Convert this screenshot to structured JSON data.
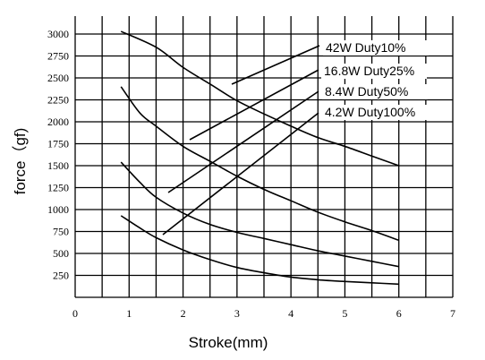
{
  "chart_data": {
    "type": "line",
    "xlabel": "Stroke(mm)",
    "ylabel": "force（gf)",
    "xlim": [
      0,
      7
    ],
    "ylim": [
      0,
      3250
    ],
    "x_ticks": [
      "0",
      "1",
      "2",
      "3",
      "4",
      "5",
      "6",
      "7"
    ],
    "y_ticks": [
      "250",
      "500",
      "750",
      "1000",
      "1250",
      "1500",
      "1750",
      "2000",
      "2250",
      "2500",
      "2750",
      "3000"
    ],
    "grid": true,
    "legend": [
      "42W Duty10%",
      "16.8W Duty25%",
      "8.4W Duty50%",
      "4.2W Duty100%"
    ],
    "series": [
      {
        "name": "42W Duty10%",
        "x": [
          0.85,
          1.5,
          2.0,
          2.5,
          3.0,
          3.5,
          4.0,
          4.5,
          5.0,
          5.5,
          6.0
        ],
        "y": [
          3030,
          2850,
          2620,
          2430,
          2240,
          2090,
          1950,
          1820,
          1720,
          1610,
          1500
        ]
      },
      {
        "name": "16.8W Duty25%",
        "x": [
          0.85,
          1.2,
          1.5,
          2.0,
          2.5,
          3.0,
          3.5,
          4.0,
          4.5,
          5.0,
          5.5,
          6.0
        ],
        "y": [
          2400,
          2100,
          1950,
          1720,
          1550,
          1380,
          1230,
          1100,
          970,
          860,
          760,
          650
        ]
      },
      {
        "name": "8.4W Duty50%",
        "x": [
          0.85,
          1.2,
          1.5,
          2.0,
          2.5,
          3.0,
          3.5,
          4.0,
          4.5,
          5.0,
          5.5,
          6.0
        ],
        "y": [
          1540,
          1310,
          1140,
          960,
          830,
          740,
          670,
          600,
          530,
          470,
          410,
          350
        ]
      },
      {
        "name": "4.2W Duty100%",
        "x": [
          0.85,
          1.2,
          1.5,
          2.0,
          2.5,
          3.0,
          3.5,
          4.0,
          4.5,
          5.0,
          5.5,
          6.0
        ],
        "y": [
          930,
          790,
          680,
          540,
          430,
          340,
          280,
          230,
          200,
          180,
          165,
          150
        ]
      }
    ]
  }
}
